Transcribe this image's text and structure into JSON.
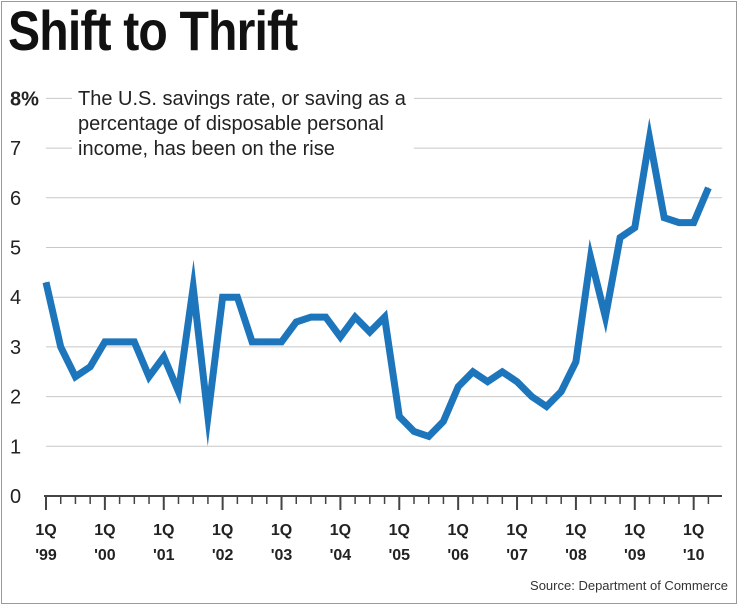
{
  "headline": "Shift to Thrift",
  "subtitle": "The U.S. savings rate, or saving as a percentage of disposable personal income, has been on the rise",
  "source": "Source: Department of Commerce",
  "chart_data": {
    "type": "line",
    "title": "Shift to Thrift",
    "ylabel": "",
    "xlabel": "",
    "ylim": [
      0,
      8
    ],
    "yticks": [
      0,
      1,
      2,
      3,
      4,
      5,
      6,
      7,
      8
    ],
    "ytick_labels": [
      "0",
      "1",
      "2",
      "3",
      "4",
      "5",
      "6",
      "7",
      "8%"
    ],
    "grid": true,
    "x_start": "1Q 1999",
    "x_end": "2Q 2010",
    "xtick_labels": [
      {
        "line1": "1Q",
        "line2": "'99"
      },
      {
        "line1": "1Q",
        "line2": "'00"
      },
      {
        "line1": "1Q",
        "line2": "'01"
      },
      {
        "line1": "1Q",
        "line2": "'02"
      },
      {
        "line1": "1Q",
        "line2": "'03"
      },
      {
        "line1": "1Q",
        "line2": "'04"
      },
      {
        "line1": "1Q",
        "line2": "'05"
      },
      {
        "line1": "1Q",
        "line2": "'06"
      },
      {
        "line1": "1Q",
        "line2": "'07"
      },
      {
        "line1": "1Q",
        "line2": "'08"
      },
      {
        "line1": "1Q",
        "line2": "'09"
      },
      {
        "line1": "1Q",
        "line2": "'10"
      }
    ],
    "series": [
      {
        "name": "Savings rate (%)",
        "color": "#1d75bc",
        "values": [
          4.3,
          3.0,
          2.4,
          2.6,
          3.1,
          3.1,
          3.1,
          2.4,
          2.8,
          2.1,
          4.2,
          1.6,
          4.0,
          4.0,
          3.1,
          3.1,
          3.1,
          3.5,
          3.6,
          3.6,
          3.2,
          3.6,
          3.3,
          3.6,
          1.6,
          1.3,
          1.2,
          1.5,
          2.2,
          2.5,
          2.3,
          2.5,
          2.3,
          2.0,
          1.8,
          2.1,
          2.7,
          4.8,
          3.6,
          5.2,
          5.4,
          7.2,
          5.6,
          5.5,
          5.5,
          6.2
        ]
      }
    ]
  }
}
